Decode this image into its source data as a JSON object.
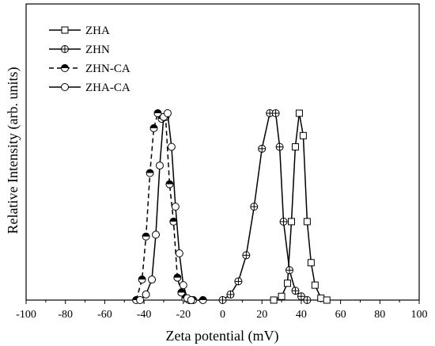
{
  "chart_data": {
    "type": "line",
    "xlabel": "Zeta potential (mV)",
    "ylabel": "Relative Intensity (arb. units)",
    "xlim": [
      -100,
      100
    ],
    "ylim": [
      0,
      1.1
    ],
    "xticks": [
      -100,
      -80,
      -60,
      -40,
      -20,
      0,
      20,
      40,
      60,
      80,
      100
    ],
    "y_tick_labels_shown": false,
    "grid": false,
    "legend_position": "top-left",
    "series": [
      {
        "name": "ZHA",
        "marker": "open-square",
        "line": "solid",
        "x": [
          26,
          30,
          33,
          35,
          37,
          39,
          41,
          43,
          45,
          47,
          50,
          53
        ],
        "y": [
          0.0,
          0.02,
          0.09,
          0.42,
          0.82,
          1.0,
          0.88,
          0.42,
          0.2,
          0.08,
          0.01,
          0.0
        ]
      },
      {
        "name": "ZHN",
        "marker": "circle-plus",
        "line": "solid",
        "x": [
          0,
          4,
          8,
          12,
          16,
          20,
          24,
          27,
          29,
          31,
          34,
          37,
          40,
          43
        ],
        "y": [
          0.0,
          0.03,
          0.1,
          0.24,
          0.5,
          0.81,
          1.0,
          1.0,
          0.82,
          0.42,
          0.16,
          0.05,
          0.02,
          0.0
        ]
      },
      {
        "name": "ZHN-CA",
        "marker": "half-filled-circle",
        "line": "dashed",
        "x": [
          -44,
          -41,
          -39,
          -37,
          -35,
          -33,
          -31,
          -29,
          -27,
          -25,
          -23,
          -21,
          -19,
          -17,
          -15,
          -10
        ],
        "y": [
          0.0,
          0.11,
          0.34,
          0.68,
          0.92,
          1.0,
          0.97,
          0.98,
          0.62,
          0.42,
          0.12,
          0.04,
          0.01,
          0.0,
          0.0,
          0.0
        ]
      },
      {
        "name": "ZHA-CA",
        "marker": "open-circle",
        "line": "solid",
        "x": [
          -42,
          -39,
          -36,
          -34,
          -32,
          -30,
          -28,
          -26,
          -24,
          -22,
          -20,
          -18,
          -16
        ],
        "y": [
          0.0,
          0.03,
          0.11,
          0.35,
          0.72,
          0.98,
          1.0,
          0.82,
          0.5,
          0.25,
          0.08,
          0.01,
          0.0
        ]
      }
    ]
  }
}
